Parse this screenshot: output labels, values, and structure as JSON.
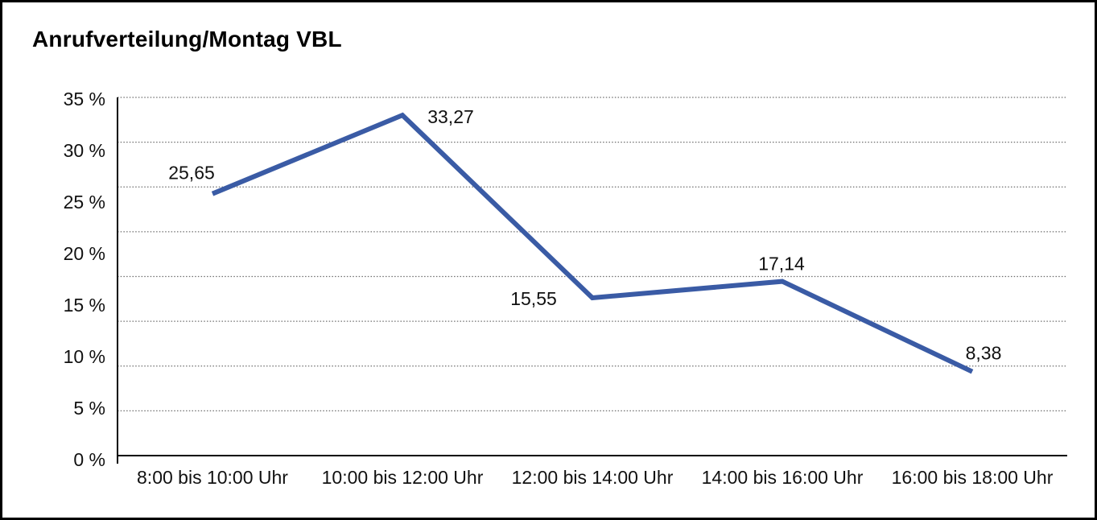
{
  "title": "Anrufverteilung/Montag VBL",
  "chart_data": {
    "type": "line",
    "title": "Anrufverteilung/Montag VBL",
    "categories": [
      "8:00 bis 10:00 Uhr",
      "10:00 bis 12:00 Uhr",
      "12:00 bis 14:00 Uhr",
      "14:00 bis 16:00 Uhr",
      "16:00 bis 18:00 Uhr"
    ],
    "series": [
      {
        "name": "Anrufverteilung Montag VBL",
        "values": [
          25.65,
          33.27,
          15.55,
          17.14,
          8.38
        ],
        "value_labels": [
          "25,65",
          "33,27",
          "15,55",
          "17,14",
          "8,38"
        ]
      }
    ],
    "y_tick_labels": [
      "35 %",
      "30 %",
      "25 %",
      "20 %",
      "15 %",
      "10 %",
      "5 %",
      "0 %"
    ],
    "ylim": [
      0,
      35
    ],
    "y_unit": "%",
    "grid": "horizontal-dotted",
    "legend": "none",
    "line_color": "#3A5BA5",
    "axis_color": "#000000",
    "grid_color": "#6e6e6e"
  }
}
